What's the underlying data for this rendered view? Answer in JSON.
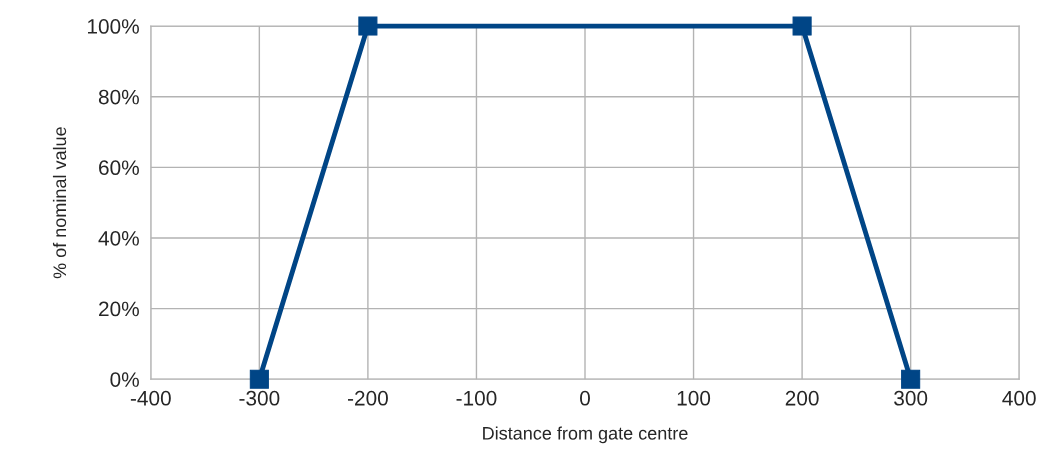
{
  "chart_data": {
    "type": "line",
    "xlabel": "Distance from gate centre",
    "ylabel": "% of nominal value",
    "x": [
      -300,
      -200,
      200,
      300
    ],
    "series": [
      {
        "color": "#004586",
        "values": [
          0,
          100,
          100,
          0
        ]
      }
    ],
    "xlim": [
      -400,
      400
    ],
    "xticks": [
      -400,
      -300,
      -200,
      -100,
      0,
      100,
      200,
      300,
      400
    ],
    "ylim": [
      0,
      100
    ],
    "yticks": [
      {
        "value": 0,
        "label": "0%"
      },
      {
        "value": 20,
        "label": "20%"
      },
      {
        "value": 40,
        "label": "40%"
      },
      {
        "value": 60,
        "label": "60%"
      },
      {
        "value": 80,
        "label": "80%"
      },
      {
        "value": 100,
        "label": "100%"
      }
    ],
    "grid": true,
    "marker": "square",
    "line_style": "solid"
  }
}
